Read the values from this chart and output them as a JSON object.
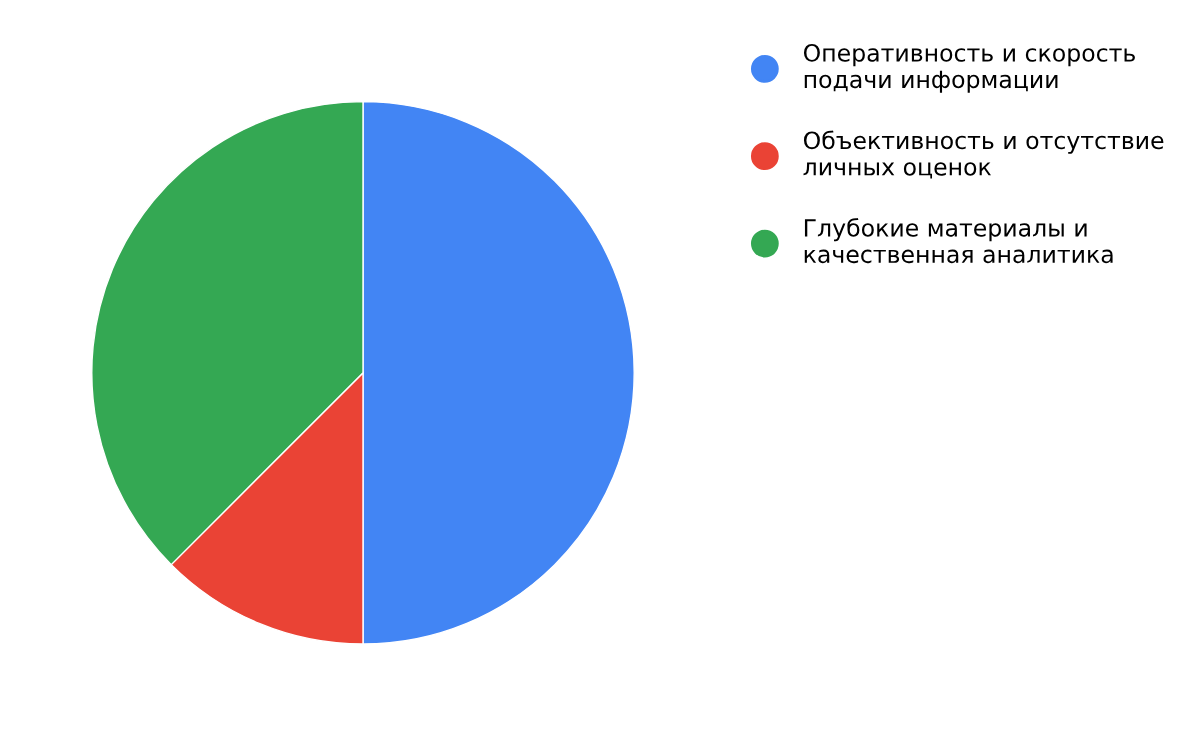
{
  "chart_data": {
    "type": "pie",
    "categories": [
      "Оперативность и скорость\nподачи информации",
      "Объективность и отсутствие\nличных оценок",
      "Глубокие материалы и\nкачественная аналитика"
    ],
    "values": [
      50,
      12.5,
      37.5
    ],
    "colors": [
      "#4285f4",
      "#ea4335",
      "#34a853"
    ],
    "legend": "top right"
  }
}
